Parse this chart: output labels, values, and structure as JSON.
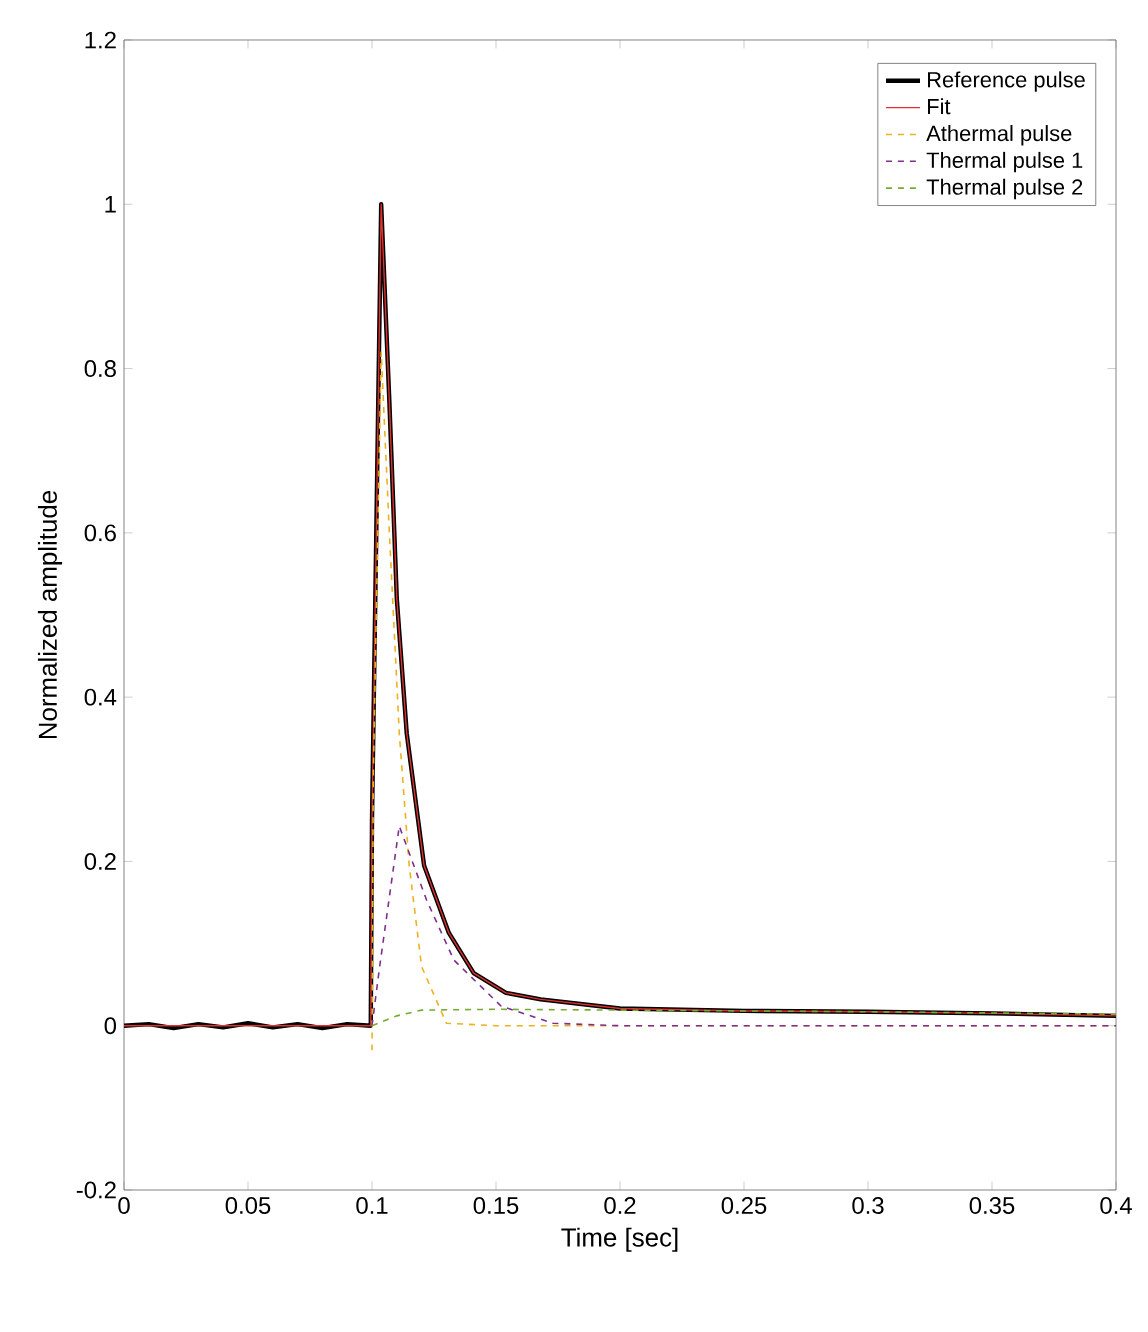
{
  "chart_data": {
    "type": "line",
    "xlabel": "Time [sec]",
    "ylabel": "Normalized amplitude",
    "xlim": [
      0,
      0.4
    ],
    "ylim": [
      -0.2,
      1.2
    ],
    "xticks": [
      0,
      0.05,
      0.1,
      0.15,
      0.2,
      0.25,
      0.3,
      0.35,
      0.4
    ],
    "yticks": [
      -0.2,
      0,
      0.2,
      0.4,
      0.6,
      0.8,
      1,
      1.2
    ],
    "legend": "top right",
    "grid": false,
    "series": [
      {
        "name": "Reference pulse",
        "color": "#000000",
        "line_style": "solid",
        "x": [
          0,
          0.01,
          0.02,
          0.03,
          0.04,
          0.05,
          0.06,
          0.07,
          0.08,
          0.09,
          0.0995,
          0.1,
          0.1037,
          0.107,
          0.11,
          0.114,
          0.121,
          0.131,
          0.141,
          0.154,
          0.168,
          0.2,
          0.25,
          0.3,
          0.35,
          0.4
        ],
        "values": [
          0,
          0.002,
          -0.003,
          0.002,
          -0.002,
          0.003,
          -0.002,
          0.002,
          -0.003,
          0.002,
          0,
          0.25,
          1.0,
          0.76,
          0.52,
          0.356,
          0.195,
          0.113,
          0.064,
          0.04,
          0.032,
          0.021,
          0.018,
          0.017,
          0.015,
          0.012
        ]
      },
      {
        "name": "Fit",
        "color": "#e03030",
        "line_style": "solid",
        "x": [
          0,
          0.0995,
          0.1,
          0.1037,
          0.107,
          0.11,
          0.114,
          0.121,
          0.131,
          0.141,
          0.154,
          0.168,
          0.2,
          0.25,
          0.3,
          0.35,
          0.4
        ],
        "values": [
          0,
          0,
          0.25,
          1.0,
          0.76,
          0.52,
          0.356,
          0.195,
          0.113,
          0.064,
          0.04,
          0.032,
          0.021,
          0.018,
          0.017,
          0.015,
          0.012
        ]
      },
      {
        "name": "Athermal pulse",
        "color": "#edb120",
        "line_style": "dashed",
        "x": [
          0.1,
          0.1005,
          0.1037,
          0.107,
          0.111,
          0.115,
          0.12,
          0.13,
          0.15,
          0.2,
          0.3,
          0.4
        ],
        "values": [
          -0.03,
          0.3,
          0.82,
          0.6,
          0.356,
          0.195,
          0.072,
          0.003,
          0,
          0,
          0,
          0
        ]
      },
      {
        "name": "Thermal pulse 1",
        "color": "#7e2f8e",
        "line_style": "dashed",
        "x": [
          0.1,
          0.103,
          0.111,
          0.122,
          0.133,
          0.152,
          0.173,
          0.2,
          0.3,
          0.4
        ],
        "values": [
          0,
          0.07,
          0.243,
          0.153,
          0.08,
          0.024,
          0.003,
          0,
          0,
          0
        ]
      },
      {
        "name": "Thermal pulse 2",
        "color": "#77ac30",
        "line_style": "dashed",
        "x": [
          0.1,
          0.11,
          0.12,
          0.15,
          0.2,
          0.3,
          0.4
        ],
        "values": [
          0,
          0.012,
          0.019,
          0.02,
          0.019,
          0.017,
          0.014
        ]
      }
    ]
  }
}
